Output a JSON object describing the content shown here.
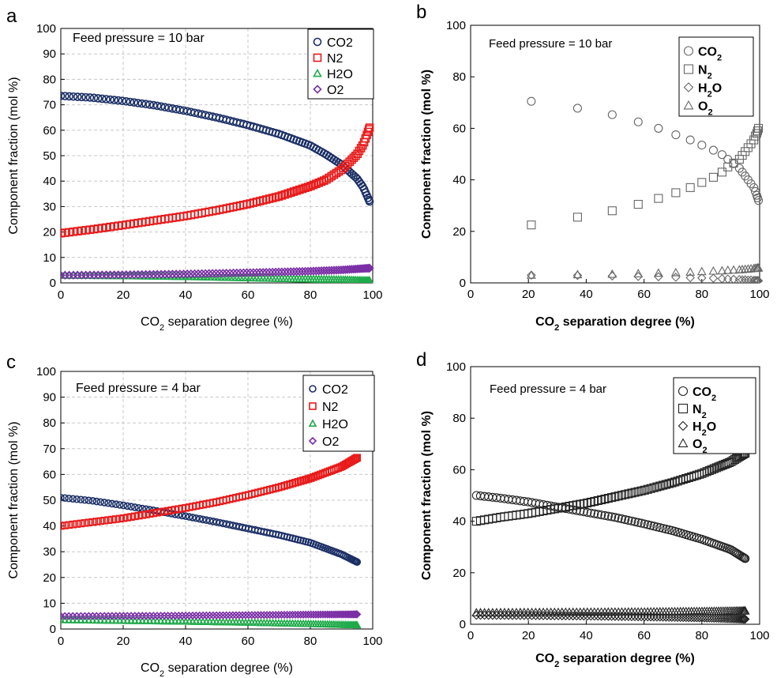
{
  "figure": {
    "panels": [
      {
        "letter": "a",
        "style": "color",
        "annotation": "Feed pressure = 10 bar",
        "xlabel_main": "CO",
        "xlabel_sub": "2",
        "xlabel_rest": " separation degree (%)",
        "ylabel": "Component fraction (mol %)",
        "xticks": [
          "0",
          "20",
          "40",
          "60",
          "80",
          "100"
        ],
        "yticks": [
          "0",
          "10",
          "20",
          "30",
          "40",
          "50",
          "60",
          "70",
          "80",
          "90",
          "100"
        ],
        "legend": [
          {
            "label": "CO2",
            "marker": "circle",
            "color": "#1b2f66"
          },
          {
            "label": "N2",
            "marker": "square",
            "color": "#e81b1b"
          },
          {
            "label": "H2O",
            "marker": "triangle",
            "color": "#1faa4a"
          },
          {
            "label": "O2",
            "marker": "diamond",
            "color": "#7b2fa6"
          }
        ]
      },
      {
        "letter": "b",
        "style": "mono",
        "annotation": "Feed pressure = 10 bar",
        "xlabel_main": "CO",
        "xlabel_sub": "2",
        "xlabel_rest": " separation degree (%)",
        "ylabel": "Component fraction (mol %)",
        "xticks": [
          "0",
          "20",
          "40",
          "60",
          "80",
          "100"
        ],
        "yticks": [
          "0",
          "20",
          "40",
          "60",
          "80",
          "100"
        ],
        "legend": [
          {
            "base": "CO",
            "sub": "2",
            "marker": "circle",
            "color": "#666666"
          },
          {
            "base": "N",
            "sub": "2",
            "marker": "square",
            "color": "#666666"
          },
          {
            "base": "H",
            "sub": "2",
            "rest": "O",
            "marker": "diamond",
            "color": "#666666"
          },
          {
            "base": "O",
            "sub": "2",
            "marker": "triangle",
            "color": "#666666"
          }
        ]
      },
      {
        "letter": "c",
        "style": "color",
        "annotation": "Feed pressure = 4 bar",
        "xlabel_main": "CO",
        "xlabel_sub": "2",
        "xlabel_rest": " separation degree (%)",
        "ylabel": "Component fraction (mol %)",
        "xticks": [
          "0",
          "20",
          "40",
          "60",
          "80",
          "100"
        ],
        "yticks": [
          "0",
          "10",
          "20",
          "30",
          "40",
          "50",
          "60",
          "70",
          "80",
          "90",
          "100"
        ],
        "legend": [
          {
            "label": "CO2",
            "marker": "circle",
            "color": "#1b2f66"
          },
          {
            "label": "N2",
            "marker": "square",
            "color": "#e81b1b"
          },
          {
            "label": "H2O",
            "marker": "triangle",
            "color": "#1faa4a"
          },
          {
            "label": "O2",
            "marker": "diamond",
            "color": "#7b2fa6"
          }
        ]
      },
      {
        "letter": "d",
        "style": "mono",
        "annotation": "Feed pressure = 4 bar",
        "xlabel_main": "CO",
        "xlabel_sub": "2",
        "xlabel_rest": " separation degree (%)",
        "ylabel": "Component fraction (mol %)",
        "xticks": [
          "0",
          "20",
          "40",
          "60",
          "80",
          "100"
        ],
        "yticks": [
          "0",
          "20",
          "40",
          "60",
          "80",
          "100"
        ],
        "legend": [
          {
            "base": "CO",
            "sub": "2",
            "marker": "circle",
            "color": "#222222"
          },
          {
            "base": "N",
            "sub": "2",
            "marker": "square",
            "color": "#222222"
          },
          {
            "base": "H",
            "sub": "2",
            "rest": "O",
            "marker": "diamond",
            "color": "#222222"
          },
          {
            "base": "O",
            "sub": "2",
            "marker": "triangle",
            "color": "#222222"
          }
        ]
      }
    ]
  },
  "chart_data": [
    {
      "type": "scatter",
      "panel": "a",
      "title": "",
      "xlabel": "CO2 separation degree (%)",
      "ylabel": "Component fraction (mol %)",
      "xlim": [
        0,
        100
      ],
      "ylim": [
        0,
        100
      ],
      "grid": true,
      "legend_position": "top-right",
      "x_range": [
        0,
        99
      ],
      "n_points": 100,
      "series": [
        {
          "name": "CO2",
          "x": [
            0,
            10,
            20,
            30,
            40,
            50,
            60,
            70,
            80,
            85,
            90,
            95,
            97,
            99
          ],
          "y": [
            73.5,
            72.8,
            71.5,
            69.8,
            67.6,
            65.0,
            62.0,
            58.5,
            54.0,
            50.5,
            46.5,
            41.0,
            37.5,
            32.0
          ]
        },
        {
          "name": "N2",
          "x": [
            0,
            10,
            20,
            30,
            40,
            50,
            60,
            70,
            80,
            85,
            90,
            95,
            97,
            99
          ],
          "y": [
            19.5,
            21.0,
            22.7,
            24.5,
            26.3,
            28.5,
            31.0,
            34.0,
            38.0,
            40.5,
            44.5,
            50.5,
            54.5,
            61.0
          ]
        },
        {
          "name": "H2O",
          "x": [
            0,
            20,
            40,
            60,
            80,
            90,
            99
          ],
          "y": [
            3.0,
            2.8,
            2.5,
            2.0,
            1.5,
            1.2,
            0.8
          ]
        },
        {
          "name": "O2",
          "x": [
            0,
            20,
            40,
            60,
            80,
            90,
            99
          ],
          "y": [
            3.0,
            3.2,
            3.5,
            4.0,
            4.6,
            5.1,
            5.8
          ]
        }
      ]
    },
    {
      "type": "scatter",
      "panel": "b",
      "title": "",
      "xlabel": "CO2 separation degree (%)",
      "ylabel": "Component fraction (mol %)",
      "xlim": [
        0,
        100
      ],
      "ylim": [
        0,
        100
      ],
      "grid": false,
      "legend_position": "top-right",
      "series": [
        {
          "name": "CO2",
          "x": [
            21,
            37,
            49,
            58,
            65,
            71,
            76,
            80,
            84,
            87,
            89,
            91,
            93,
            94,
            95,
            96,
            97,
            98,
            98.5,
            99,
            99.3,
            99.6
          ],
          "y": [
            70.5,
            67.8,
            65.3,
            62.5,
            60.0,
            57.5,
            55.5,
            53.5,
            51.5,
            49.8,
            48.0,
            46.3,
            44.5,
            43.0,
            41.5,
            40.0,
            38.5,
            37.0,
            35.5,
            34.0,
            33.0,
            32.0
          ]
        },
        {
          "name": "N2",
          "x": [
            21,
            37,
            49,
            58,
            65,
            71,
            76,
            80,
            84,
            87,
            89,
            91,
            93,
            94,
            95,
            96,
            97,
            98,
            98.5,
            99,
            99.3,
            99.6
          ],
          "y": [
            22.5,
            25.5,
            28.0,
            30.5,
            32.8,
            35.0,
            37.0,
            39.0,
            41.0,
            43.0,
            45.0,
            46.5,
            48.0,
            49.5,
            51.0,
            52.5,
            54.0,
            55.5,
            57.0,
            58.0,
            59.0,
            60.0
          ]
        },
        {
          "name": "H2O",
          "x": [
            21,
            37,
            49,
            58,
            65,
            71,
            76,
            80,
            84,
            87,
            89,
            91,
            93,
            94,
            95,
            96,
            97,
            98,
            98.5,
            99,
            99.3,
            99.6
          ],
          "y": [
            3.0,
            2.9,
            2.7,
            2.5,
            2.4,
            2.2,
            2.0,
            1.9,
            1.8,
            1.6,
            1.5,
            1.4,
            1.3,
            1.2,
            1.2,
            1.1,
            1.1,
            1.0,
            1.0,
            0.9,
            0.9,
            0.8
          ]
        },
        {
          "name": "O2",
          "x": [
            21,
            37,
            49,
            58,
            65,
            71,
            76,
            80,
            84,
            87,
            89,
            91,
            93,
            94,
            95,
            96,
            97,
            98,
            98.5,
            99,
            99.3,
            99.6
          ],
          "y": [
            3.0,
            3.2,
            3.4,
            3.6,
            3.8,
            4.0,
            4.2,
            4.4,
            4.6,
            4.7,
            4.9,
            5.0,
            5.1,
            5.2,
            5.3,
            5.4,
            5.5,
            5.6,
            5.7,
            5.7,
            5.8,
            5.8
          ]
        }
      ]
    },
    {
      "type": "scatter",
      "panel": "c",
      "title": "",
      "xlabel": "CO2 separation degree (%)",
      "ylabel": "Component fraction (mol %)",
      "xlim": [
        0,
        100
      ],
      "ylim": [
        0,
        100
      ],
      "grid": true,
      "legend_position": "top-right",
      "x_range": [
        0,
        95
      ],
      "n_points": 100,
      "series": [
        {
          "name": "CO2",
          "x": [
            0,
            10,
            20,
            30,
            40,
            50,
            60,
            70,
            80,
            90,
            95
          ],
          "y": [
            51.0,
            49.8,
            48.0,
            46.0,
            43.8,
            41.5,
            39.0,
            36.5,
            33.5,
            29.0,
            26.0
          ]
        },
        {
          "name": "N2",
          "x": [
            0,
            10,
            20,
            30,
            40,
            50,
            60,
            70,
            80,
            90,
            95
          ],
          "y": [
            40.0,
            41.5,
            43.0,
            45.0,
            47.0,
            49.3,
            52.0,
            55.0,
            58.5,
            63.0,
            66.5
          ]
        },
        {
          "name": "H2O",
          "x": [
            0,
            20,
            40,
            60,
            80,
            95
          ],
          "y": [
            3.5,
            3.2,
            2.9,
            2.5,
            2.0,
            1.5
          ]
        },
        {
          "name": "O2",
          "x": [
            0,
            20,
            40,
            60,
            80,
            95
          ],
          "y": [
            5.0,
            5.1,
            5.2,
            5.4,
            5.6,
            5.7
          ]
        }
      ]
    },
    {
      "type": "scatter",
      "panel": "d",
      "title": "",
      "xlabel": "CO2 separation degree (%)",
      "ylabel": "Component fraction (mol %)",
      "xlim": [
        0,
        100
      ],
      "ylim": [
        0,
        100
      ],
      "grid": false,
      "legend_position": "top-left",
      "x_range": [
        2,
        95
      ],
      "n_points": 90,
      "series": [
        {
          "name": "CO2",
          "x": [
            2,
            10,
            20,
            30,
            40,
            50,
            60,
            70,
            80,
            90,
            95
          ],
          "y": [
            50.0,
            49.0,
            47.5,
            45.5,
            43.5,
            41.5,
            39.0,
            36.3,
            33.0,
            29.0,
            25.5
          ]
        },
        {
          "name": "N2",
          "x": [
            2,
            10,
            20,
            30,
            40,
            50,
            60,
            70,
            80,
            90,
            95
          ],
          "y": [
            40.0,
            41.5,
            43.0,
            45.0,
            47.0,
            49.5,
            52.0,
            55.0,
            58.5,
            63.0,
            66.5
          ]
        },
        {
          "name": "H2O",
          "x": [
            2,
            20,
            40,
            60,
            80,
            95
          ],
          "y": [
            3.5,
            3.4,
            3.2,
            2.9,
            2.5,
            2.0
          ]
        },
        {
          "name": "O2",
          "x": [
            2,
            20,
            40,
            60,
            80,
            95
          ],
          "y": [
            4.5,
            4.6,
            4.7,
            4.8,
            5.0,
            5.2
          ]
        }
      ]
    }
  ]
}
